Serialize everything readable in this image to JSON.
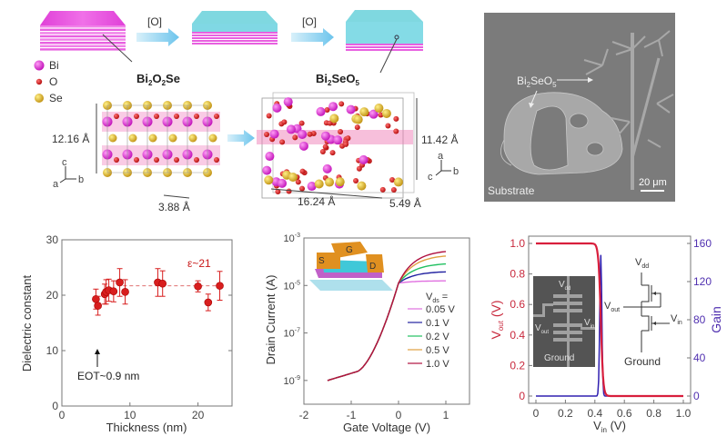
{
  "top": {
    "step_label_1": "[O]",
    "step_label_2": "[O]",
    "legend": [
      {
        "name": "Bi",
        "color": "#d61fd0"
      },
      {
        "name": "O",
        "color": "#c81818"
      },
      {
        "name": "Se",
        "color": "#d8b020"
      }
    ],
    "structure_1": {
      "formula": {
        "main": "Bi",
        "s1": "2",
        "mid": "O",
        "s2": "2",
        "end": "Se"
      },
      "height": "12.16 Å",
      "width": "3.88 Å",
      "axes": {
        "up": "c",
        "right": "b",
        "diag": "a"
      }
    },
    "structure_2": {
      "formula": {
        "main": "Bi",
        "s1": "2",
        "mid": "SeO",
        "s2": "5"
      },
      "height": "11.42 Å",
      "length": "16.24 Å",
      "depth": "5.49 Å",
      "axes": {
        "up": "a",
        "right": "b",
        "diag": "c"
      }
    },
    "sem": {
      "label_main": "Bi",
      "label_s1": "2",
      "label_mid": "SeO",
      "label_s2": "5",
      "substrate": "Substrate",
      "scale_bar": "20 μm"
    }
  },
  "chart_data": [
    {
      "type": "scatter",
      "title": "",
      "xlabel": "Thickness (nm)",
      "ylabel": "Dielectric constant",
      "xlim": [
        0,
        25
      ],
      "ylim": [
        0,
        30
      ],
      "xticks": [
        "0",
        "10",
        "20"
      ],
      "yticks": [
        "0",
        "10",
        "20",
        "30"
      ],
      "points": [
        {
          "x": 5.0,
          "y": 19.3,
          "err": 1.8
        },
        {
          "x": 5.3,
          "y": 18.1,
          "err": 1.7
        },
        {
          "x": 6.3,
          "y": 20.2,
          "err": 1.8
        },
        {
          "x": 6.5,
          "y": 20.6,
          "err": 2.2
        },
        {
          "x": 6.9,
          "y": 20.9,
          "err": 2.0
        },
        {
          "x": 7.6,
          "y": 20.7,
          "err": 1.9
        },
        {
          "x": 8.5,
          "y": 22.3,
          "err": 2.5
        },
        {
          "x": 9.3,
          "y": 20.6,
          "err": 2.2
        },
        {
          "x": 14.1,
          "y": 22.3,
          "err": 2.5
        },
        {
          "x": 14.8,
          "y": 22.1,
          "err": 2.3
        },
        {
          "x": 20.0,
          "y": 21.6,
          "err": 1.0
        },
        {
          "x": 21.5,
          "y": 18.7,
          "err": 1.5
        },
        {
          "x": 23.2,
          "y": 21.7,
          "err": 2.6
        }
      ],
      "fit_line": {
        "y": 21.7,
        "x_range": [
          9,
          23.5
        ]
      },
      "annotations": {
        "epsilon": "ε~21",
        "eot": "EOT~0.9 nm"
      },
      "color": "#d81e1e"
    },
    {
      "type": "line",
      "title": "",
      "xlabel": "Gate Voltage (V)",
      "ylabel": "Drain Current (A)",
      "xlim": [
        -2,
        1.5
      ],
      "ylim_log10": [
        -10,
        -3
      ],
      "xticks": [
        "-2",
        "-1",
        "0",
        "1"
      ],
      "yticks": [
        {
          "base": "10",
          "exp": "-3"
        },
        {
          "base": "10",
          "exp": "-5"
        },
        {
          "base": "10",
          "exp": "-7"
        },
        {
          "base": "10",
          "exp": "-9"
        }
      ],
      "legend_title": {
        "main": "V",
        "sub": "ds",
        "end": " ="
      },
      "series": [
        {
          "name": "0.05 V",
          "color": "#e070e0",
          "saturation_log10": -4.8
        },
        {
          "name": "0.1 V",
          "color": "#2020a0",
          "saturation_log10": -4.4
        },
        {
          "name": "0.2 V",
          "color": "#20c060",
          "saturation_log10": -4.05
        },
        {
          "name": "0.5 V",
          "color": "#e0a040",
          "saturation_log10": -3.7
        },
        {
          "name": "1.0 V",
          "color": "#b01040",
          "saturation_log10": -3.5
        }
      ],
      "inset_labels": {
        "source": "S",
        "gate": "G",
        "drain": "D"
      }
    },
    {
      "type": "line",
      "title": "",
      "xlabel": {
        "main": "V",
        "sub": "in",
        "end": " (V)"
      },
      "ylabel_left": {
        "main": "V",
        "sub": "out",
        "end": " (V)"
      },
      "ylabel_right": "Gain",
      "xlim": [
        0,
        1.0
      ],
      "ylim_left": [
        0,
        1.0
      ],
      "ylim_right": [
        0,
        160
      ],
      "xticks": [
        "0",
        "0.2",
        "0.4",
        "0.6",
        "0.8",
        "1.0"
      ],
      "yticks_left": [
        "0",
        "0.2",
        "0.4",
        "0.6",
        "0.8",
        "1.0"
      ],
      "yticks_right": [
        "0",
        "40",
        "80",
        "120",
        "160"
      ],
      "vout_series": {
        "name": "Vout",
        "color": "#d81e3c",
        "transition_vin": 0.44
      },
      "gain_series": {
        "name": "Gain",
        "color": "#3020b0",
        "peak_vin": 0.44,
        "peak_gain": 148
      },
      "inset_labels": {
        "vdd": {
          "main": "V",
          "sub": "dd"
        },
        "vout": {
          "main": "V",
          "sub": "out"
        },
        "vin": {
          "main": "V",
          "sub": "in"
        },
        "ground": "Ground"
      }
    }
  ]
}
